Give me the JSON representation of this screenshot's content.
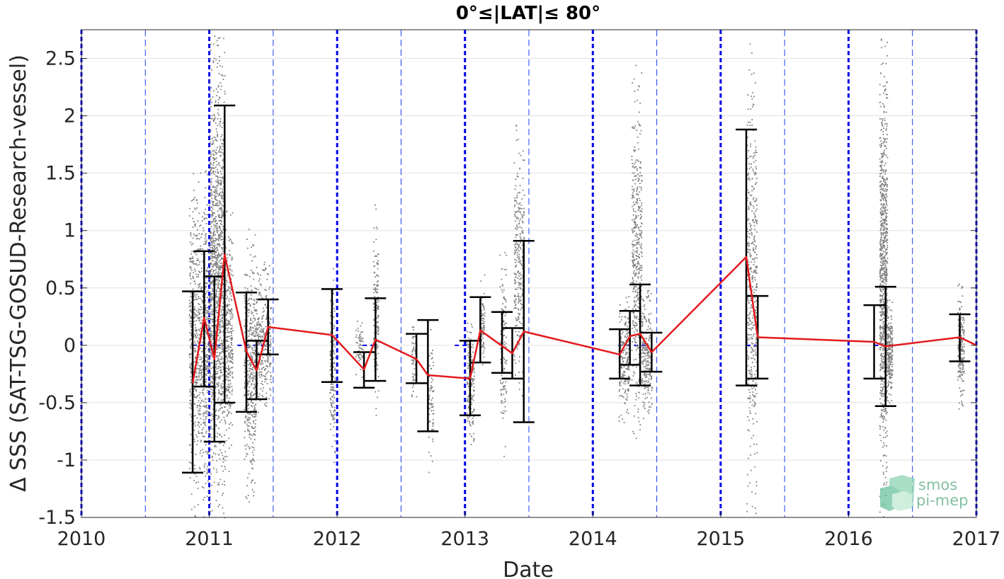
{
  "chart_data": {
    "type": "scatter",
    "title": "0°≤|LAT|≤ 80°",
    "xlabel": "Date",
    "ylabel": "Δ SSS (SAT-TSG-GOSUD-Research-vessel)",
    "xlim": [
      2010.0,
      2017.0
    ],
    "ylim": [
      -1.5,
      2.75
    ],
    "x_ticks": [
      "2010",
      "2011",
      "2012",
      "2013",
      "2014",
      "2015",
      "2016",
      "2017"
    ],
    "y_ticks": [
      "-1.5",
      "-1",
      "-0.5",
      "0",
      "0.5",
      "1",
      "1.5",
      "2",
      "2.5"
    ],
    "grid": true,
    "year_lines": [
      2010.0,
      2011.0,
      2012.0,
      2013.0,
      2014.0,
      2015.0,
      2016.0,
      2017.0
    ],
    "half_year_lines": [
      2010.5,
      2011.5,
      2012.5,
      2013.5,
      2014.5,
      2015.5,
      2016.5
    ],
    "zero_reference_segments": [
      [
        2010.87,
        2011.12
      ],
      [
        2011.22,
        2011.48
      ],
      [
        2012.2,
        2012.32
      ],
      [
        2012.92,
        2013.02
      ],
      [
        2014.2,
        2014.42
      ],
      [
        2015.2,
        2015.28
      ],
      [
        2016.2,
        2016.3
      ]
    ],
    "mean_series": {
      "name": "",
      "color": "#e41a1c",
      "x": [
        2010.87,
        2010.96,
        2011.04,
        2011.12,
        2011.29,
        2011.37,
        2011.46,
        2011.96,
        2012.21,
        2012.3,
        2012.62,
        2012.71,
        2013.04,
        2013.12,
        2013.37,
        2013.46,
        2014.21,
        2014.29,
        2014.37,
        2014.46,
        2015.2,
        2015.29,
        2016.2,
        2016.29,
        2016.87,
        2017.0
      ],
      "y": [
        -0.33,
        0.24,
        -0.12,
        0.79,
        -0.05,
        -0.22,
        0.16,
        0.09,
        -0.21,
        0.05,
        -0.12,
        -0.26,
        -0.29,
        0.13,
        -0.07,
        0.12,
        -0.08,
        0.08,
        0.1,
        -0.06,
        0.77,
        0.07,
        0.03,
        -0.01,
        0.07,
        0.0
      ]
    },
    "error_bars": {
      "color": "#000000",
      "items": [
        {
          "x": 2010.87,
          "low": -1.11,
          "high": 0.47
        },
        {
          "x": 2010.96,
          "low": -0.36,
          "high": 0.82
        },
        {
          "x": 2011.04,
          "low": -0.84,
          "high": 0.6
        },
        {
          "x": 2011.12,
          "low": -0.5,
          "high": 2.09
        },
        {
          "x": 2011.29,
          "low": -0.58,
          "high": 0.46
        },
        {
          "x": 2011.37,
          "low": -0.47,
          "high": 0.04
        },
        {
          "x": 2011.46,
          "low": -0.08,
          "high": 0.4
        },
        {
          "x": 2011.96,
          "low": -0.32,
          "high": 0.49
        },
        {
          "x": 2012.21,
          "low": -0.37,
          "high": -0.06
        },
        {
          "x": 2012.3,
          "low": -0.31,
          "high": 0.41
        },
        {
          "x": 2012.62,
          "low": -0.33,
          "high": 0.1
        },
        {
          "x": 2012.71,
          "low": -0.75,
          "high": 0.22
        },
        {
          "x": 2013.04,
          "low": -0.61,
          "high": 0.04
        },
        {
          "x": 2013.12,
          "low": -0.15,
          "high": 0.42
        },
        {
          "x": 2013.29,
          "low": -0.24,
          "high": 0.29
        },
        {
          "x": 2013.37,
          "low": -0.29,
          "high": 0.15
        },
        {
          "x": 2013.46,
          "low": -0.67,
          "high": 0.91
        },
        {
          "x": 2014.21,
          "low": -0.29,
          "high": 0.14
        },
        {
          "x": 2014.29,
          "low": -0.17,
          "high": 0.3
        },
        {
          "x": 2014.37,
          "low": -0.35,
          "high": 0.53
        },
        {
          "x": 2014.46,
          "low": -0.23,
          "high": 0.11
        },
        {
          "x": 2015.2,
          "low": -0.35,
          "high": 1.88
        },
        {
          "x": 2015.29,
          "low": -0.29,
          "high": 0.43
        },
        {
          "x": 2016.2,
          "low": -0.29,
          "high": 0.35
        },
        {
          "x": 2016.29,
          "low": -0.53,
          "high": 0.51
        },
        {
          "x": 2016.87,
          "low": -0.14,
          "high": 0.27
        }
      ]
    },
    "scatter_clusters": {
      "color": "#808080",
      "items": [
        {
          "x_start": 2010.84,
          "x_end": 2011.0,
          "y_low": -1.5,
          "y_high": 1.55,
          "n": 900
        },
        {
          "x_start": 2011.0,
          "x_end": 2011.12,
          "y_low": -1.5,
          "y_high": 2.75,
          "n": 1300
        },
        {
          "x_start": 2011.12,
          "x_end": 2011.18,
          "y_low": -1.1,
          "y_high": 1.2,
          "n": 300
        },
        {
          "x_start": 2011.27,
          "x_end": 2011.36,
          "y_low": -1.37,
          "y_high": 1.02,
          "n": 450
        },
        {
          "x_start": 2011.36,
          "x_end": 2011.48,
          "y_low": -0.6,
          "y_high": 0.75,
          "n": 300
        },
        {
          "x_start": 2011.94,
          "x_end": 2011.98,
          "y_low": -1.05,
          "y_high": 0.7,
          "n": 150
        },
        {
          "x_start": 2012.14,
          "x_end": 2012.2,
          "y_low": -0.3,
          "y_high": 0.25,
          "n": 60
        },
        {
          "x_start": 2012.28,
          "x_end": 2012.32,
          "y_low": -0.65,
          "y_high": 1.25,
          "n": 150
        },
        {
          "x_start": 2012.58,
          "x_end": 2012.62,
          "y_low": -0.45,
          "y_high": 0.27,
          "n": 70
        },
        {
          "x_start": 2012.71,
          "x_end": 2012.75,
          "y_low": -1.2,
          "y_high": 0.25,
          "n": 70
        },
        {
          "x_start": 2013.01,
          "x_end": 2013.07,
          "y_low": -0.95,
          "y_high": 0.3,
          "n": 150
        },
        {
          "x_start": 2013.12,
          "x_end": 2013.15,
          "y_low": -0.25,
          "y_high": 0.66,
          "n": 70
        },
        {
          "x_start": 2013.27,
          "x_end": 2013.32,
          "y_low": -1.02,
          "y_high": 1.05,
          "n": 120
        },
        {
          "x_start": 2013.38,
          "x_end": 2013.46,
          "y_low": -0.55,
          "y_high": 1.95,
          "n": 300
        },
        {
          "x_start": 2014.2,
          "x_end": 2014.28,
          "y_low": -0.67,
          "y_high": 0.45,
          "n": 220
        },
        {
          "x_start": 2014.3,
          "x_end": 2014.38,
          "y_low": -0.82,
          "y_high": 2.45,
          "n": 450
        },
        {
          "x_start": 2014.38,
          "x_end": 2014.46,
          "y_low": -0.65,
          "y_high": 0.5,
          "n": 230
        },
        {
          "x_start": 2015.2,
          "x_end": 2015.28,
          "y_low": -1.5,
          "y_high": 2.68,
          "n": 450
        },
        {
          "x_start": 2016.24,
          "x_end": 2016.3,
          "y_low": -1.5,
          "y_high": 2.72,
          "n": 900
        },
        {
          "x_start": 2016.3,
          "x_end": 2016.34,
          "y_low": -0.5,
          "y_high": 0.4,
          "n": 200
        },
        {
          "x_start": 2016.85,
          "x_end": 2016.9,
          "y_low": -0.57,
          "y_high": 0.58,
          "n": 200
        }
      ]
    }
  },
  "logo": {
    "line1": "smos",
    "line2": "pi-mep",
    "color": "#5aa982"
  }
}
